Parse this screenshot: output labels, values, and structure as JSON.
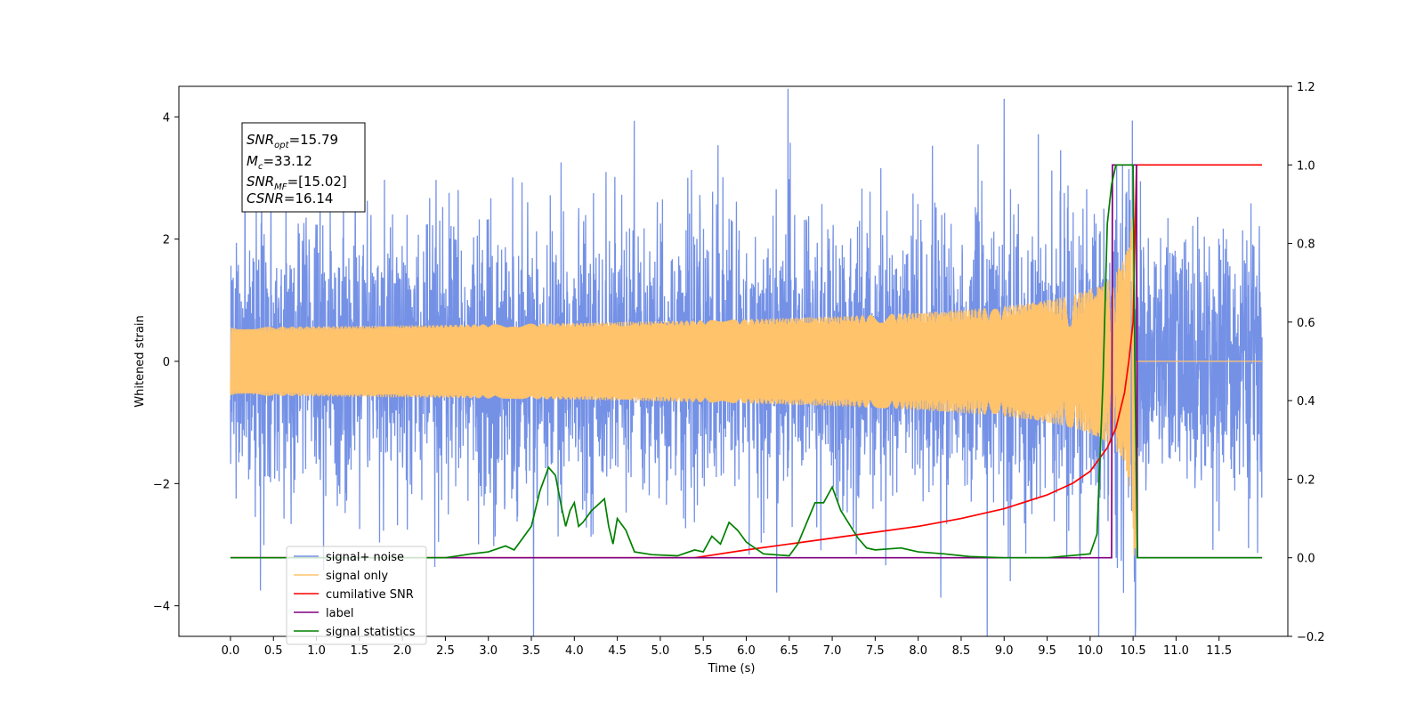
{
  "chart_data": {
    "type": "line",
    "xlabel": "Time (s)",
    "ylabel": "Whitened strain",
    "xlim": [
      -0.6,
      12.3
    ],
    "ylim": [
      -4.5,
      4.5
    ],
    "y2lim": [
      -0.2,
      1.2
    ],
    "grid": false,
    "legend_position": "lower-left",
    "x_ticks": [
      "0.0",
      "0.5",
      "1.0",
      "1.5",
      "2.0",
      "2.5",
      "3.0",
      "3.5",
      "4.0",
      "4.5",
      "5.0",
      "5.5",
      "6.0",
      "6.5",
      "7.0",
      "7.5",
      "8.0",
      "8.5",
      "9.0",
      "9.5",
      "10.0",
      "10.5",
      "11.0",
      "11.5"
    ],
    "y_ticks": [
      "−4",
      "−2",
      "0",
      "2",
      "4"
    ],
    "y2_ticks": [
      "−0.2",
      "0.0",
      "0.2",
      "0.4",
      "0.6",
      "0.8",
      "1.0",
      "1.2"
    ],
    "annotation": {
      "snr_opt": "=15.79",
      "mc": "=33.12",
      "snr_mf": "=[15.02]",
      "csnr": "=16.14"
    },
    "series": [
      {
        "name": "signal+ noise",
        "color": "#7491e6",
        "axis": "left",
        "kind": "whitened noise, amplitude approx ±2.5, peaks up to 4.1 / -4.1",
        "x_range": [
          0.0,
          12.0
        ]
      },
      {
        "name": "signal only",
        "color": "#ffc36b",
        "axis": "left",
        "kind": "chirp, amplitude growing to about 4.0 at merger t=10.52 s",
        "x_range": [
          0.0,
          12.0
        ],
        "merger_time": 10.52
      },
      {
        "name": "cumilative SNR",
        "color": "#ff0000",
        "axis": "right",
        "x": [
          0.0,
          5.4,
          6.0,
          7.0,
          8.0,
          8.5,
          9.0,
          9.5,
          9.8,
          10.0,
          10.2,
          10.3,
          10.4,
          10.45,
          10.5,
          10.54,
          12.0
        ],
        "y": [
          0.0,
          0.0,
          0.02,
          0.05,
          0.08,
          0.1,
          0.125,
          0.16,
          0.19,
          0.22,
          0.28,
          0.33,
          0.42,
          0.5,
          0.6,
          1.0,
          1.0
        ]
      },
      {
        "name": "label",
        "color": "#800080",
        "axis": "right",
        "x": [
          0.0,
          10.25,
          10.26,
          10.54,
          10.55,
          12.0
        ],
        "y": [
          0.0,
          0.0,
          1.0,
          1.0,
          0.0,
          0.0
        ]
      },
      {
        "name": "signal statistics",
        "color": "#008000",
        "axis": "right",
        "x": [
          0.0,
          2.5,
          2.8,
          3.0,
          3.2,
          3.3,
          3.5,
          3.6,
          3.7,
          3.78,
          3.85,
          3.9,
          3.95,
          4.0,
          4.05,
          4.1,
          4.2,
          4.25,
          4.35,
          4.4,
          4.45,
          4.5,
          4.6,
          4.7,
          4.9,
          5.2,
          5.4,
          5.5,
          5.6,
          5.7,
          5.8,
          5.9,
          6.0,
          6.2,
          6.5,
          6.6,
          6.8,
          6.9,
          7.0,
          7.1,
          7.3,
          7.4,
          7.5,
          7.8,
          8.0,
          8.3,
          8.6,
          9.0,
          9.5,
          10.0,
          10.08,
          10.15,
          10.2,
          10.25,
          10.3,
          10.35,
          10.5,
          10.52,
          10.55,
          11.0,
          12.0
        ],
        "y": [
          0.0,
          0.0,
          0.01,
          0.015,
          0.03,
          0.02,
          0.08,
          0.17,
          0.23,
          0.21,
          0.13,
          0.08,
          0.12,
          0.14,
          0.08,
          0.09,
          0.12,
          0.13,
          0.15,
          0.08,
          0.035,
          0.1,
          0.07,
          0.015,
          0.008,
          0.005,
          0.02,
          0.015,
          0.055,
          0.035,
          0.09,
          0.07,
          0.04,
          0.01,
          0.005,
          0.035,
          0.14,
          0.14,
          0.18,
          0.12,
          0.05,
          0.025,
          0.02,
          0.025,
          0.015,
          0.01,
          0.003,
          0.0,
          0.0,
          0.01,
          0.06,
          0.45,
          0.85,
          0.95,
          1.0,
          1.0,
          1.0,
          0.5,
          0.0,
          0.0,
          0.0
        ]
      }
    ],
    "legend_entries": [
      "signal+ noise",
      "signal only",
      "cumilative SNR",
      "label",
      "signal statistics"
    ]
  }
}
